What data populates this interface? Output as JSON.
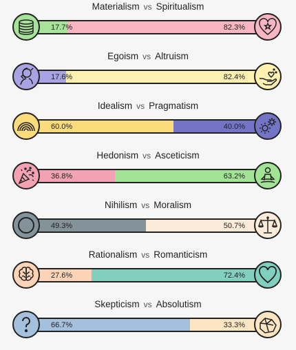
{
  "rows": [
    {
      "left_label": "Materialism",
      "right_label": "Spiritualism",
      "vs": "vs",
      "left_pct": "17.7%",
      "right_pct": "82.3%",
      "left_value": 17.7,
      "right_value": 82.3,
      "left_color": "#a7e39a",
      "right_color": "#f7b6c2",
      "left_icon": "coins-icon",
      "right_icon": "heart-star-icon"
    },
    {
      "left_label": "Egoism",
      "right_label": "Altruism",
      "vs": "vs",
      "left_pct": "17.6%",
      "right_pct": "82.4%",
      "left_value": 17.6,
      "right_value": 82.4,
      "left_color": "#aaa3e3",
      "right_color": "#fdf0b0",
      "left_icon": "self-touch-icon",
      "right_icon": "helping-hand-icon"
    },
    {
      "left_label": "Idealism",
      "right_label": "Pragmatism",
      "vs": "vs",
      "left_pct": "60.0%",
      "right_pct": "40.0%",
      "left_value": 60.0,
      "right_value": 40.0,
      "left_color": "#fbdc7c",
      "right_color": "#7474c6",
      "left_icon": "rainbow-icon",
      "right_icon": "gears-icon"
    },
    {
      "left_label": "Hedonism",
      "right_label": "Asceticism",
      "vs": "vs",
      "left_pct": "36.8%",
      "right_pct": "63.2%",
      "left_value": 36.8,
      "right_value": 63.2,
      "left_color": "#f3a2b4",
      "right_color": "#a3e396",
      "left_icon": "party-popper-icon",
      "right_icon": "meditation-icon"
    },
    {
      "left_label": "Nihilism",
      "right_label": "Moralism",
      "vs": "vs",
      "left_pct": "49.3%",
      "right_pct": "50.7%",
      "left_value": 49.3,
      "right_value": 50.7,
      "left_color": "#84939a",
      "right_color": "#fcebd9",
      "left_icon": "empty-circle-icon",
      "right_icon": "scales-icon"
    },
    {
      "left_label": "Rationalism",
      "right_label": "Romanticism",
      "vs": "vs",
      "left_pct": "27.6%",
      "right_pct": "72.4%",
      "left_value": 27.6,
      "right_value": 72.4,
      "left_color": "#fcd3b6",
      "right_color": "#80cfbf",
      "left_icon": "brain-icon",
      "right_icon": "heart-icon"
    },
    {
      "left_label": "Skepticism",
      "right_label": "Absolutism",
      "vs": "vs",
      "left_pct": "66.7%",
      "right_pct": "33.3%",
      "left_value": 66.7,
      "right_value": 33.3,
      "left_color": "#a5c0dc",
      "right_color": "#fce5c3",
      "left_icon": "question-mark-icon",
      "right_icon": "rock-icon"
    }
  ]
}
